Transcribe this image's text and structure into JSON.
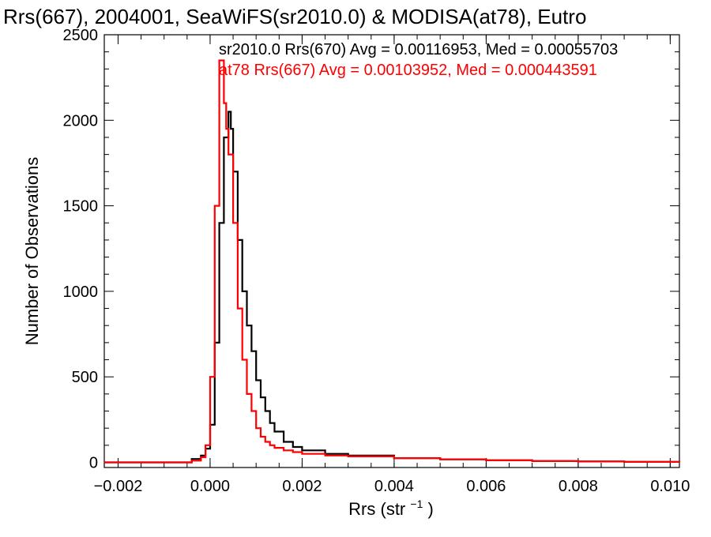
{
  "chart_data": {
    "type": "line",
    "title": "Rrs(667), 2004001, SeaWiFS(sr2010.0) & MODISA(at78), Eutro",
    "xlabel": "Rrs (str",
    "xlabel_sup": "−1",
    "xlabel_close": ")",
    "ylabel": "Number of Observations",
    "xlim": [
      -0.0023,
      0.0102
    ],
    "ylim": [
      -30,
      2500
    ],
    "x_ticks": [
      -0.002,
      0.0,
      0.002,
      0.004,
      0.006,
      0.008,
      0.01
    ],
    "x_tick_labels": [
      "−0.002",
      "0.000",
      "0.002",
      "0.004",
      "0.006",
      "0.008",
      "0.010"
    ],
    "y_ticks": [
      0,
      500,
      1000,
      1500,
      2000,
      2500
    ],
    "y_tick_labels": [
      "0",
      "500",
      "1000",
      "1500",
      "2000",
      "2500"
    ],
    "grid": false,
    "legend_position": "top-right",
    "series": [
      {
        "name": "sr2010.0 Rrs(670) Avg = 0.00116953, Med = 0.00055703",
        "color": "#000000",
        "x": [
          -0.0023,
          -0.001,
          -0.0004,
          -0.0002,
          -0.0001,
          0.0,
          0.0001,
          0.0002,
          0.0003,
          0.0004,
          0.00045,
          0.0005,
          0.0006,
          0.0007,
          0.0008,
          0.0009,
          0.001,
          0.0011,
          0.0012,
          0.0013,
          0.0014,
          0.0016,
          0.0018,
          0.002,
          0.0025,
          0.003,
          0.004,
          0.005,
          0.006,
          0.007,
          0.008,
          0.009,
          0.0102
        ],
        "y": [
          0,
          0,
          20,
          40,
          80,
          220,
          700,
          1400,
          1900,
          2050,
          1950,
          1700,
          1300,
          1000,
          800,
          650,
          480,
          380,
          300,
          230,
          180,
          120,
          90,
          70,
          50,
          40,
          25,
          18,
          12,
          8,
          5,
          3,
          2
        ]
      },
      {
        "name": "at78 Rrs(667) Avg = 0.00103952, Med = 0.000443591",
        "color": "#ff0000",
        "x": [
          -0.0023,
          -0.001,
          -0.0004,
          -0.0002,
          -0.0001,
          0.0,
          0.0001,
          0.0002,
          0.0003,
          0.00035,
          0.0004,
          0.0005,
          0.0006,
          0.0007,
          0.0008,
          0.0009,
          0.001,
          0.0011,
          0.0012,
          0.0013,
          0.0014,
          0.0016,
          0.0018,
          0.002,
          0.0025,
          0.003,
          0.004,
          0.005,
          0.006,
          0.007,
          0.008,
          0.009,
          0.0102
        ],
        "y": [
          0,
          0,
          10,
          30,
          100,
          500,
          1500,
          2350,
          2100,
          1950,
          1800,
          1400,
          900,
          600,
          400,
          300,
          200,
          150,
          120,
          100,
          85,
          70,
          60,
          50,
          40,
          35,
          25,
          18,
          12,
          8,
          5,
          3,
          2
        ]
      }
    ]
  }
}
